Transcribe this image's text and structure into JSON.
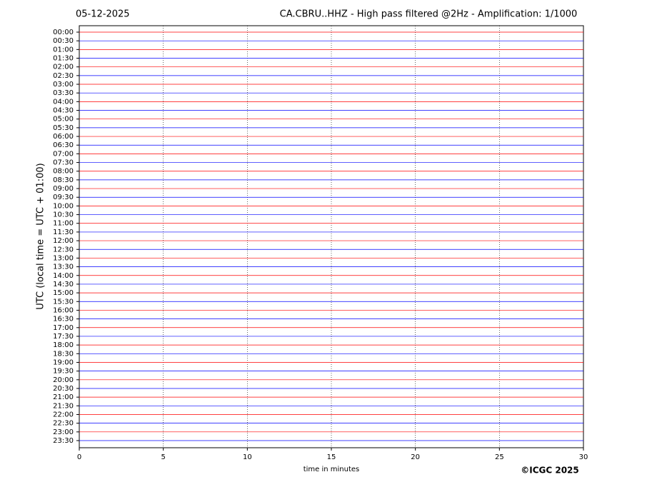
{
  "chart_data": {
    "type": "helicorder",
    "date": "05-12-2025",
    "title": "CA.CBRU..HHZ - High pass filtered @2Hz - Amplification: 1/1000",
    "xlabel": "time in minutes",
    "ylabel": "UTC (local time = UTC + 01:00)",
    "copyright": "©ICGC 2025",
    "categories": [
      "00:00",
      "00:30",
      "01:00",
      "01:30",
      "02:00",
      "02:30",
      "03:00",
      "03:30",
      "04:00",
      "04:30",
      "05:00",
      "05:30",
      "06:00",
      "06:30",
      "07:00",
      "07:30",
      "08:00",
      "08:30",
      "09:00",
      "09:30",
      "10:00",
      "10:30",
      "11:00",
      "11:30",
      "12:00",
      "12:30",
      "13:00",
      "13:30",
      "14:00",
      "14:30",
      "15:00",
      "15:30",
      "16:00",
      "16:30",
      "17:00",
      "17:30",
      "18:00",
      "18:30",
      "19:00",
      "19:30",
      "20:00",
      "20:30",
      "21:00",
      "21:30",
      "22:00",
      "22:30",
      "23:00",
      "23:30"
    ],
    "trace_colors": [
      "#ff0000",
      "#0000ff"
    ],
    "xlim": [
      0,
      30
    ],
    "xticks": [
      0,
      5,
      10,
      15,
      20,
      25,
      30
    ],
    "grid": true
  }
}
